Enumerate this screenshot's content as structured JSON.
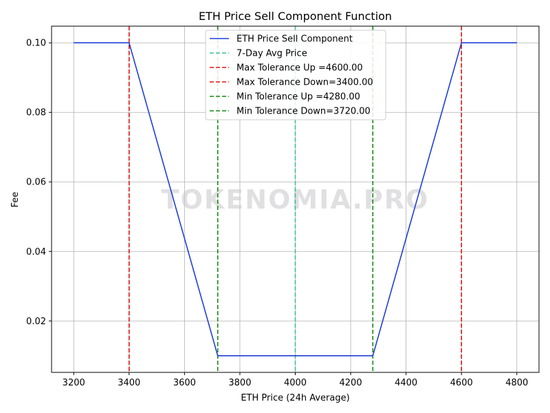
{
  "watermark": "TOKENOMIA.PRO",
  "chart_data": {
    "type": "line",
    "title": "ETH Price Sell Component Function",
    "xlabel": "ETH Price (24h Average)",
    "ylabel": "Fee",
    "xlim": [
      3120,
      4880
    ],
    "ylim": [
      0.0052,
      0.1048
    ],
    "x_ticks": [
      3200,
      3400,
      3600,
      3800,
      4000,
      4200,
      4400,
      4600,
      4800
    ],
    "y_ticks": [
      0.02,
      0.04,
      0.06,
      0.08,
      0.1
    ],
    "x_tick_labels": [
      "3200",
      "3400",
      "3600",
      "3800",
      "4000",
      "4200",
      "4400",
      "4600",
      "4800"
    ],
    "y_tick_labels": [
      "0.02",
      "0.04",
      "0.06",
      "0.08",
      "0.10"
    ],
    "grid": true,
    "legend_position": "top-center",
    "series": [
      {
        "name": "ETH Price Sell Component",
        "color": "#1f3fd6",
        "style": "solid",
        "x": [
          3200,
          3400,
          3720,
          4280,
          4600,
          4800
        ],
        "y": [
          0.1,
          0.1,
          0.01,
          0.01,
          0.1,
          0.1
        ]
      }
    ],
    "vlines": [
      {
        "name": "7-Day Avg Price",
        "x": 4000,
        "color": "#3dc193",
        "style": "dashed"
      },
      {
        "name": "Max Tolerance Up =4600.00",
        "x": 4600,
        "color": "#e01010",
        "style": "dashed"
      },
      {
        "name": "Max Tolerance Down=3400.00",
        "x": 3400,
        "color": "#e01010",
        "style": "dashed"
      },
      {
        "name": "Min Tolerance Up =4280.00",
        "x": 4280,
        "color": "#108a10",
        "style": "dashed"
      },
      {
        "name": "Min Tolerance Down=3720.00",
        "x": 3720,
        "color": "#108a10",
        "style": "dashed"
      }
    ]
  }
}
